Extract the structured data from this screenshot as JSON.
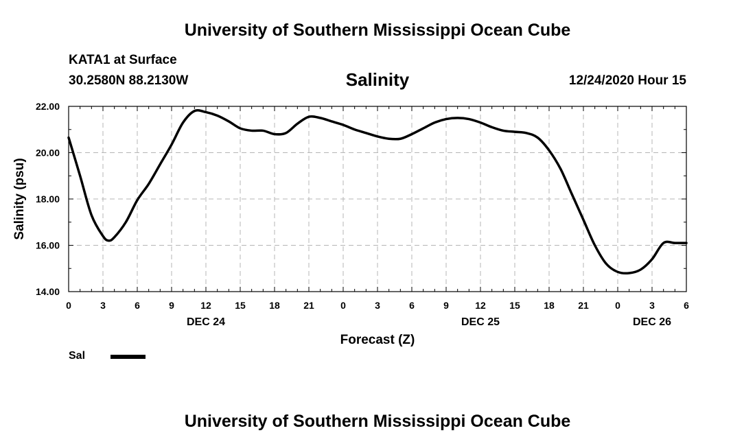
{
  "header": {
    "title": "University of Southern Mississippi Ocean Cube",
    "station": "KATA1 at Surface",
    "coordinates": "30.2580N 88.2130W",
    "chart_title": "Salinity",
    "timestamp": "12/24/2020 Hour 15"
  },
  "footer": {
    "title": "University of Southern Mississippi Ocean Cube"
  },
  "legend": {
    "label": "Sal",
    "color": "#000000"
  },
  "chart_data": {
    "type": "line",
    "title": "Salinity",
    "xlabel": "Forecast (Z)",
    "ylabel": "Salinity (psu)",
    "xlim": [
      0,
      54
    ],
    "ylim": [
      14,
      22
    ],
    "grid": true,
    "legend_position": "bottom-left",
    "x_tick_values": [
      0,
      3,
      6,
      9,
      12,
      15,
      18,
      21,
      24,
      27,
      30,
      33,
      36,
      39,
      42,
      45,
      48,
      51,
      54
    ],
    "x_tick_labels": [
      "0",
      "3",
      "6",
      "9",
      "12",
      "15",
      "18",
      "21",
      "0",
      "3",
      "6",
      "9",
      "12",
      "15",
      "18",
      "21",
      "0",
      "3",
      "6"
    ],
    "y_tick_values": [
      14,
      16,
      18,
      20,
      22
    ],
    "y_tick_labels": [
      "14.00",
      "16.00",
      "18.00",
      "20.00",
      "22.00"
    ],
    "date_labels": [
      {
        "text": "DEC 24",
        "at": 12
      },
      {
        "text": "DEC 25",
        "at": 36
      },
      {
        "text": "DEC 26",
        "at": 51
      }
    ],
    "series": [
      {
        "name": "Sal",
        "color": "#000000",
        "x": [
          0,
          1,
          2,
          3,
          3.5,
          4,
          5,
          6,
          7,
          8,
          9,
          10,
          11,
          12,
          13,
          14,
          15,
          16,
          17,
          18,
          19,
          20,
          21,
          22,
          23,
          24,
          25,
          26,
          27,
          28,
          29,
          30,
          31,
          32,
          33,
          34,
          35,
          36,
          37,
          38,
          39,
          40,
          41,
          42,
          43,
          44,
          45,
          46,
          47,
          48,
          49,
          50,
          51,
          52,
          53,
          54
        ],
        "y": [
          20.65,
          19.0,
          17.3,
          16.4,
          16.2,
          16.35,
          17.0,
          17.95,
          18.65,
          19.5,
          20.35,
          21.3,
          21.8,
          21.75,
          21.6,
          21.35,
          21.05,
          20.95,
          20.95,
          20.8,
          20.85,
          21.25,
          21.55,
          21.5,
          21.35,
          21.2,
          21.0,
          20.85,
          20.7,
          20.6,
          20.6,
          20.8,
          21.05,
          21.3,
          21.45,
          21.5,
          21.45,
          21.3,
          21.1,
          20.95,
          20.9,
          20.85,
          20.65,
          20.1,
          19.3,
          18.2,
          17.1,
          16.0,
          15.2,
          14.85,
          14.8,
          14.95,
          15.4,
          16.1,
          16.1,
          16.1
        ]
      }
    ]
  }
}
